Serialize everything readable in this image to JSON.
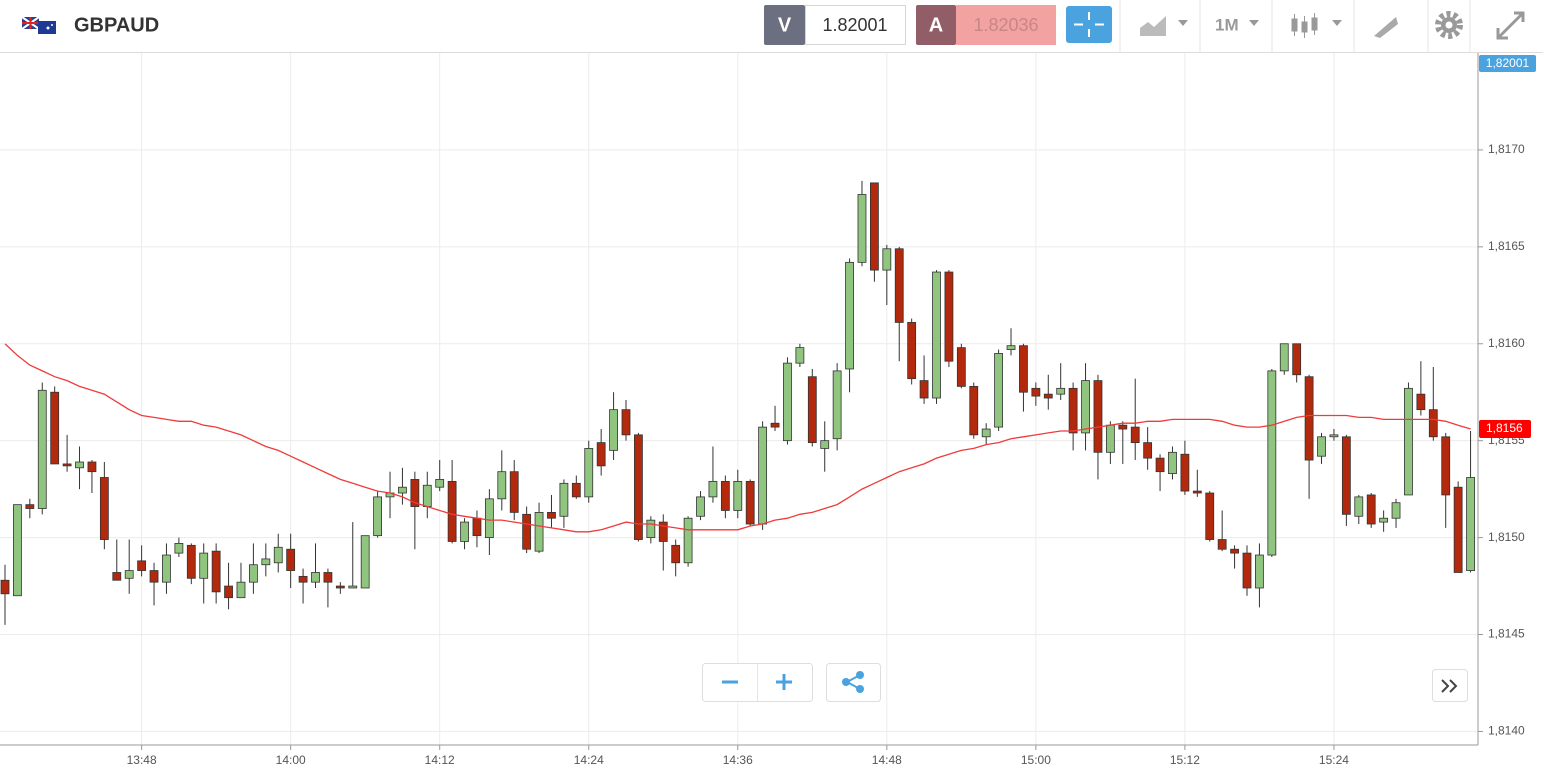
{
  "header": {
    "symbol": "GBPAUD",
    "sell_label": "V",
    "sell_price": "1.82001",
    "buy_label": "A",
    "buy_price": "1.82036",
    "timeframe": "1M",
    "bid_marker": "1,82001"
  },
  "chart_data": {
    "type": "candlestick",
    "categories": [
      null,
      null,
      null,
      null,
      null,
      null,
      null,
      null,
      null,
      null,
      null,
      "13:48",
      null,
      null,
      null,
      null,
      null,
      null,
      null,
      null,
      null,
      null,
      null,
      "14:00",
      null,
      null,
      null,
      null,
      null,
      null,
      null,
      null,
      null,
      null,
      null,
      "14:12",
      null,
      null,
      null,
      null,
      null,
      null,
      null,
      null,
      null,
      null,
      null,
      "14:24",
      null,
      null,
      null,
      null,
      null,
      null,
      null,
      null,
      null,
      null,
      null,
      "14:36",
      null,
      null,
      null,
      null,
      null,
      null,
      null,
      null,
      null,
      null,
      null,
      "14:48",
      null,
      null,
      null,
      null,
      null,
      null,
      null,
      null,
      null,
      null,
      null,
      "15:00",
      null,
      null,
      null,
      null,
      null,
      null,
      null,
      null,
      null,
      null,
      null,
      "15:12",
      null,
      null,
      null,
      null,
      null,
      null,
      null,
      null,
      null,
      null,
      null,
      "15:24",
      null,
      null,
      null,
      null,
      null,
      null,
      null,
      null,
      null,
      null,
      null
    ],
    "open": [
      1.81478,
      1.8147,
      1.81517,
      1.81515,
      1.81575,
      1.81538,
      1.81536,
      1.81539,
      1.81531,
      1.81482,
      1.81479,
      1.81488,
      1.81483,
      1.81477,
      1.81492,
      1.81496,
      1.81479,
      1.81493,
      1.81475,
      1.81469,
      1.81477,
      1.81486,
      1.81487,
      1.81494,
      1.8148,
      1.81477,
      1.81482,
      1.81475,
      1.81474,
      1.81474,
      1.81501,
      1.81521,
      1.81523,
      1.8153,
      1.81516,
      1.81526,
      1.81529,
      1.81498,
      1.8151,
      1.815,
      1.8152,
      1.81534,
      1.81512,
      1.81493,
      1.81513,
      1.81511,
      1.81528,
      1.81521,
      1.81549,
      1.81545,
      1.81566,
      1.81553,
      1.815,
      1.81508,
      1.81496,
      1.81487,
      1.81511,
      1.81521,
      1.81529,
      1.81514,
      1.81529,
      1.81507,
      1.81559,
      1.8155,
      1.8159,
      1.81583,
      1.81546,
      1.81551,
      1.81587,
      1.81642,
      1.81683,
      1.81638,
      1.81649,
      1.81611,
      1.81581,
      1.81572,
      1.81637,
      1.81598,
      1.81578,
      1.81552,
      1.81557,
      1.81597,
      1.81599,
      1.81577,
      1.81574,
      1.81574,
      1.81577,
      1.81554,
      1.81581,
      1.81544,
      1.81558,
      1.81557,
      1.81549,
      1.81541,
      1.81533,
      1.81543,
      1.81524,
      1.81523,
      1.81499,
      1.81494,
      1.81492,
      1.81474,
      1.81491,
      1.81586,
      1.816,
      1.81583,
      1.81542,
      1.81552,
      1.81552,
      1.81511,
      1.81522,
      1.81508,
      1.8151,
      1.81522,
      1.81574,
      1.81566,
      1.81552,
      1.81526,
      1.81483
    ],
    "high": [
      1.81486,
      1.81517,
      1.8152,
      1.8158,
      1.81578,
      1.81553,
      1.81547,
      1.8154,
      1.81539,
      1.81499,
      1.81499,
      1.81496,
      1.81487,
      1.81497,
      1.815,
      1.81497,
      1.81497,
      1.81497,
      1.81487,
      1.81487,
      1.81497,
      1.81497,
      1.81502,
      1.81502,
      1.81484,
      1.81497,
      1.81484,
      1.81477,
      1.81508,
      1.81501,
      1.81524,
      1.81534,
      1.81536,
      1.81534,
      1.81534,
      1.8154,
      1.8154,
      1.8151,
      1.81514,
      1.81525,
      1.81545,
      1.8154,
      1.81516,
      1.81518,
      1.81522,
      1.8153,
      1.81532,
      1.8155,
      1.81556,
      1.81575,
      1.81571,
      1.81554,
      1.81511,
      1.81512,
      1.81499,
      1.81511,
      1.81524,
      1.81547,
      1.81532,
      1.81535,
      1.8153,
      1.8156,
      1.81568,
      1.81593,
      1.816,
      1.81587,
      1.8156,
      1.8159,
      1.81644,
      1.81684,
      1.81683,
      1.81651,
      1.8165,
      1.81613,
      1.81594,
      1.81638,
      1.81638,
      1.816,
      1.8158,
      1.81559,
      1.81597,
      1.81608,
      1.816,
      1.8158,
      1.81584,
      1.8159,
      1.8158,
      1.8159,
      1.81584,
      1.8156,
      1.8156,
      1.81582,
      1.81557,
      1.81543,
      1.81547,
      1.8155,
      1.81535,
      1.81524,
      1.81514,
      1.81496,
      1.81496,
      1.81497,
      1.81587,
      1.816,
      1.816,
      1.81584,
      1.81554,
      1.81556,
      1.81553,
      1.81522,
      1.81523,
      1.81514,
      1.8152,
      1.8158,
      1.81591,
      1.81588,
      1.81554,
      1.81529,
      1.81555
    ],
    "low": [
      1.81455,
      1.8147,
      1.8151,
      1.81512,
      1.81538,
      1.81534,
      1.81525,
      1.81523,
      1.81494,
      1.81478,
      1.81471,
      1.8148,
      1.81465,
      1.81471,
      1.8149,
      1.81476,
      1.81466,
      1.81466,
      1.81463,
      1.81469,
      1.81471,
      1.8148,
      1.81482,
      1.81474,
      1.81466,
      1.81474,
      1.81464,
      1.81471,
      1.81474,
      1.81474,
      1.815,
      1.8151,
      1.81517,
      1.81494,
      1.8151,
      1.81524,
      1.81497,
      1.81494,
      1.81495,
      1.81491,
      1.81514,
      1.81509,
      1.81492,
      1.81492,
      1.81505,
      1.81505,
      1.8152,
      1.81518,
      1.81532,
      1.8154,
      1.8155,
      1.81498,
      1.81497,
      1.81483,
      1.8148,
      1.81485,
      1.81509,
      1.81518,
      1.8151,
      1.8151,
      1.81506,
      1.81504,
      1.81555,
      1.81548,
      1.81588,
      1.81547,
      1.81534,
      1.81545,
      1.81575,
      1.8164,
      1.81632,
      1.8162,
      1.81591,
      1.81579,
      1.81569,
      1.81569,
      1.81588,
      1.81577,
      1.81551,
      1.81548,
      1.81555,
      1.81594,
      1.81565,
      1.81568,
      1.81566,
      1.81571,
      1.81545,
      1.81545,
      1.8153,
      1.81538,
      1.81538,
      1.8154,
      1.81535,
      1.81524,
      1.8153,
      1.81522,
      1.81521,
      1.81498,
      1.81493,
      1.81484,
      1.8147,
      1.81464,
      1.8149,
      1.81584,
      1.8158,
      1.8152,
      1.81538,
      1.8155,
      1.81506,
      1.81507,
      1.81505,
      1.81503,
      1.81505,
      1.81522,
      1.81563,
      1.8155,
      1.81505,
      1.81482,
      1.81482
    ],
    "close": [
      1.81471,
      1.81517,
      1.81515,
      1.81576,
      1.81538,
      1.81537,
      1.81539,
      1.81534,
      1.81499,
      1.81478,
      1.81483,
      1.81483,
      1.81477,
      1.81491,
      1.81497,
      1.81479,
      1.81492,
      1.81472,
      1.81469,
      1.81477,
      1.81486,
      1.81489,
      1.81495,
      1.81483,
      1.81477,
      1.81482,
      1.81477,
      1.81474,
      1.81475,
      1.81501,
      1.81521,
      1.81523,
      1.81526,
      1.81516,
      1.81527,
      1.8153,
      1.81498,
      1.81508,
      1.81501,
      1.8152,
      1.81534,
      1.81513,
      1.81494,
      1.81513,
      1.8151,
      1.81528,
      1.81521,
      1.81546,
      1.81537,
      1.81566,
      1.81553,
      1.81499,
      1.81509,
      1.81498,
      1.81487,
      1.8151,
      1.81521,
      1.81529,
      1.81514,
      1.81529,
      1.81507,
      1.81557,
      1.81557,
      1.8159,
      1.81598,
      1.81549,
      1.8155,
      1.81586,
      1.81642,
      1.81677,
      1.81638,
      1.81649,
      1.81611,
      1.81582,
      1.81572,
      1.81637,
      1.81591,
      1.81578,
      1.81553,
      1.81556,
      1.81595,
      1.81599,
      1.81575,
      1.81573,
      1.81572,
      1.81577,
      1.81554,
      1.81581,
      1.81544,
      1.81558,
      1.81556,
      1.81549,
      1.81541,
      1.81534,
      1.81544,
      1.81524,
      1.81523,
      1.81499,
      1.81494,
      1.81492,
      1.81474,
      1.81491,
      1.81586,
      1.816,
      1.81584,
      1.8154,
      1.81552,
      1.81553,
      1.81512,
      1.81521,
      1.81507,
      1.8151,
      1.81518,
      1.81577,
      1.81566,
      1.81552,
      1.81522,
      1.81482,
      1.81531
    ],
    "up_color": "#90c580",
    "down_color": "#b3290d",
    "moving_average": {
      "color": "#ef3b3b",
      "values": [
        1.816,
        1.81594,
        1.81589,
        1.81586,
        1.81583,
        1.81581,
        1.81578,
        1.81576,
        1.81574,
        1.8157,
        1.81566,
        1.81563,
        1.81562,
        1.81561,
        1.8156,
        1.8156,
        1.81558,
        1.81557,
        1.81555,
        1.81553,
        1.8155,
        1.81547,
        1.81545,
        1.81542,
        1.81539,
        1.81536,
        1.81533,
        1.8153,
        1.81528,
        1.81526,
        1.81524,
        1.81523,
        1.81521,
        1.81518,
        1.81516,
        1.81514,
        1.81512,
        1.81511,
        1.8151,
        1.81509,
        1.81509,
        1.81508,
        1.81507,
        1.81506,
        1.81505,
        1.81504,
        1.81503,
        1.81503,
        1.81504,
        1.81506,
        1.81508,
        1.81507,
        1.81507,
        1.81506,
        1.81505,
        1.81504,
        1.81504,
        1.81504,
        1.81504,
        1.81504,
        1.81506,
        1.81507,
        1.81509,
        1.8151,
        1.81512,
        1.81513,
        1.81515,
        1.81517,
        1.81521,
        1.81525,
        1.81528,
        1.81531,
        1.81534,
        1.81536,
        1.81538,
        1.81541,
        1.81543,
        1.81545,
        1.81546,
        1.81548,
        1.81549,
        1.81551,
        1.81552,
        1.81553,
        1.81554,
        1.81555,
        1.81555,
        1.81556,
        1.81557,
        1.81558,
        1.81559,
        1.81559,
        1.8156,
        1.8156,
        1.81561,
        1.81561,
        1.81561,
        1.81561,
        1.8156,
        1.81558,
        1.81557,
        1.81557,
        1.81558,
        1.8156,
        1.81562,
        1.81563,
        1.81563,
        1.81563,
        1.81563,
        1.81562,
        1.81562,
        1.81561,
        1.81561,
        1.81561,
        1.81561,
        1.81561,
        1.8156,
        1.81558,
        1.81556
      ]
    },
    "price_marker": {
      "value": 1.81556,
      "label": "1,8156",
      "color": "#ff0000"
    },
    "ylim": [
      1.81393,
      1.8175
    ],
    "yticks": [
      {
        "value": 1.814,
        "label": "1,8140"
      },
      {
        "value": 1.8145,
        "label": "1,8145"
      },
      {
        "value": 1.815,
        "label": "1,8150"
      },
      {
        "value": 1.8155,
        "label": "1,8155"
      },
      {
        "value": 1.816,
        "label": "1,8160"
      },
      {
        "value": 1.8165,
        "label": "1,8165"
      },
      {
        "value": 1.817,
        "label": "1,8170"
      }
    ],
    "grid": true
  }
}
